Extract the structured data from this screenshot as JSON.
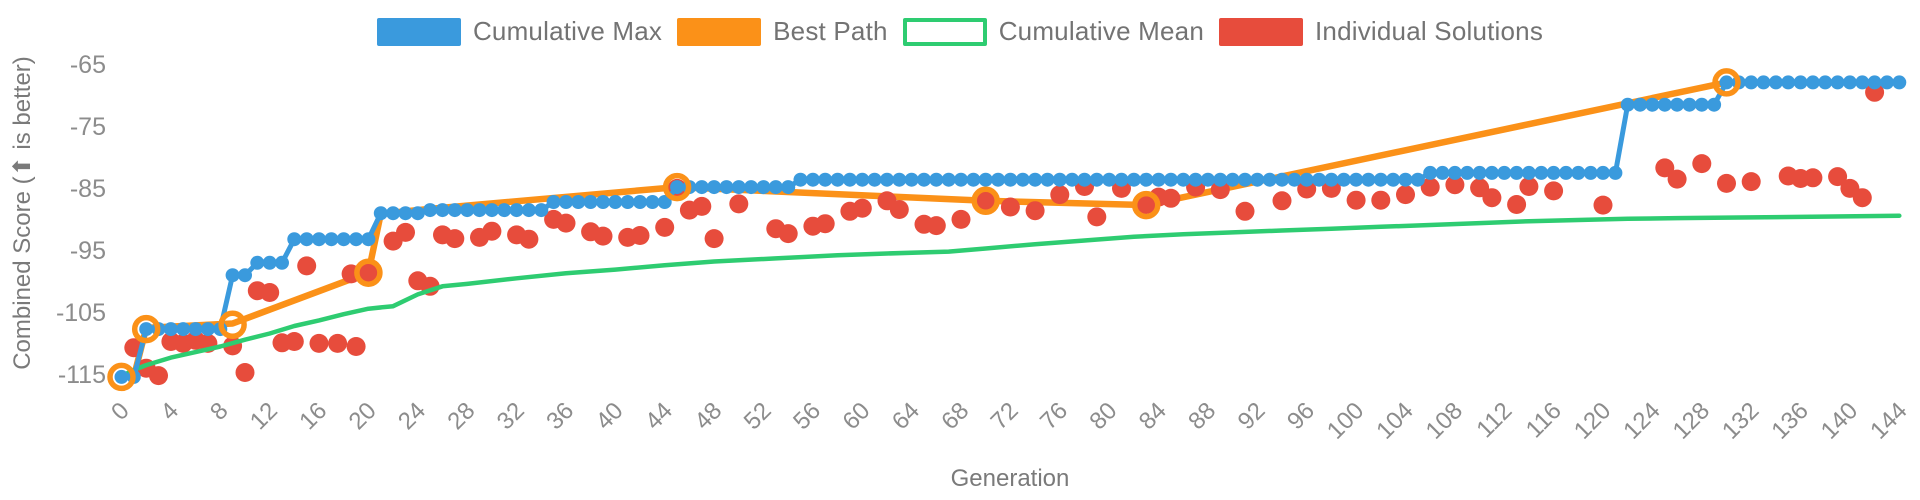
{
  "chart_data": {
    "type": "line",
    "title": "",
    "xlabel": "Generation",
    "ylabel": "Combined Score (⬆ is better)",
    "xlim": [
      -1,
      146
    ],
    "ylim": [
      -117,
      -63
    ],
    "x_ticks": [
      0,
      4,
      8,
      12,
      16,
      20,
      24,
      28,
      32,
      36,
      40,
      44,
      48,
      52,
      56,
      60,
      64,
      68,
      72,
      76,
      80,
      84,
      88,
      92,
      96,
      100,
      104,
      108,
      112,
      116,
      120,
      124,
      128,
      132,
      136,
      140,
      144
    ],
    "y_ticks": [
      -65,
      -75,
      -85,
      -95,
      -105,
      -115
    ],
    "grid": false,
    "legend_position": "top-center",
    "colors": {
      "cumulative_max": "#3a9add",
      "best_path": "#fb9118",
      "cumulative_mean": "#2ecc71",
      "individual_solutions": "#e74c3c",
      "tick_text": "#8c8c8c",
      "axis_title_text": "#7a7a7a",
      "legend_text": "#737373"
    },
    "legend": [
      {
        "label": "Cumulative Max",
        "color": "#3a9add",
        "filled": true
      },
      {
        "label": "Best Path",
        "color": "#fb9118",
        "filled": true
      },
      {
        "label": "Cumulative Mean",
        "color": "#2ecc71",
        "filled": false
      },
      {
        "label": "Individual Solutions",
        "color": "#e74c3c",
        "filled": true
      }
    ],
    "series": {
      "cumulative_max_steps": [
        {
          "from": 0,
          "to": 1,
          "value": -115.3
        },
        {
          "from": 2,
          "to": 8,
          "value": -107.6
        },
        {
          "from": 9,
          "to": 10,
          "value": -98.9
        },
        {
          "from": 11,
          "to": 13,
          "value": -96.9
        },
        {
          "from": 14,
          "to": 20,
          "value": -93.1
        },
        {
          "from": 21,
          "to": 24,
          "value": -88.9
        },
        {
          "from": 25,
          "to": 34,
          "value": -88.4
        },
        {
          "from": 35,
          "to": 44,
          "value": -87.1
        },
        {
          "from": 45,
          "to": 54,
          "value": -84.7
        },
        {
          "from": 55,
          "to": 105,
          "value": -83.5
        },
        {
          "from": 106,
          "to": 121,
          "value": -82.4
        },
        {
          "from": 122,
          "to": 129,
          "value": -71.4
        },
        {
          "from": 130,
          "to": 144,
          "value": -67.8
        }
      ],
      "best_path_points": [
        [
          0,
          -115.3
        ],
        [
          1,
          -115.3
        ],
        [
          2,
          -107.4
        ],
        [
          9,
          -106.7
        ],
        [
          20,
          -98.5
        ],
        [
          21,
          -89.0
        ],
        [
          25,
          -88.2
        ],
        [
          45,
          -84.7
        ],
        [
          70,
          -86.9
        ],
        [
          83,
          -87.6
        ],
        [
          130,
          -67.8
        ]
      ],
      "best_path_ring_markers": [
        [
          0,
          -115.3
        ],
        [
          2,
          -107.6
        ],
        [
          9,
          -106.9
        ],
        [
          20,
          -98.5
        ],
        [
          45,
          -84.7
        ],
        [
          70,
          -86.9
        ],
        [
          83,
          -87.6
        ],
        [
          130,
          -67.8
        ]
      ],
      "cumulative_mean_points": [
        [
          0,
          -115.2
        ],
        [
          1,
          -114.2
        ],
        [
          2,
          -113.4
        ],
        [
          4,
          -112.2
        ],
        [
          6,
          -111.3
        ],
        [
          8,
          -110.4
        ],
        [
          10,
          -109.3
        ],
        [
          12,
          -108.3
        ],
        [
          14,
          -107.1
        ],
        [
          16,
          -106.2
        ],
        [
          18,
          -105.2
        ],
        [
          20,
          -104.3
        ],
        [
          22,
          -103.9
        ],
        [
          24,
          -102.0
        ],
        [
          26,
          -100.7
        ],
        [
          28,
          -100.3
        ],
        [
          32,
          -99.4
        ],
        [
          36,
          -98.6
        ],
        [
          40,
          -98.0
        ],
        [
          44,
          -97.3
        ],
        [
          48,
          -96.7
        ],
        [
          53,
          -96.2
        ],
        [
          58,
          -95.7
        ],
        [
          62,
          -95.4
        ],
        [
          67,
          -95.1
        ],
        [
          70,
          -94.6
        ],
        [
          74,
          -93.9
        ],
        [
          78,
          -93.3
        ],
        [
          82,
          -92.7
        ],
        [
          86,
          -92.3
        ],
        [
          90,
          -92.0
        ],
        [
          94,
          -91.7
        ],
        [
          98,
          -91.4
        ],
        [
          102,
          -91.1
        ],
        [
          106,
          -90.8
        ],
        [
          110,
          -90.5
        ],
        [
          114,
          -90.2
        ],
        [
          118,
          -90.0
        ],
        [
          122,
          -89.8
        ],
        [
          126,
          -89.7
        ],
        [
          131,
          -89.6
        ],
        [
          136,
          -89.5
        ],
        [
          144,
          -89.3
        ]
      ],
      "individual_solutions_points": [
        [
          1,
          -110.6
        ],
        [
          2,
          -113.9
        ],
        [
          3,
          -115.1
        ],
        [
          4,
          -109.6
        ],
        [
          5,
          -109.9
        ],
        [
          6,
          -109.4
        ],
        [
          7,
          -109.9
        ],
        [
          9,
          -110.3
        ],
        [
          10,
          -114.6
        ],
        [
          11,
          -101.4
        ],
        [
          12,
          -101.7
        ],
        [
          13,
          -109.8
        ],
        [
          14,
          -109.6
        ],
        [
          15,
          -97.4
        ],
        [
          16,
          -109.9
        ],
        [
          17.5,
          -109.9
        ],
        [
          18.6,
          -98.7
        ],
        [
          19,
          -110.4
        ],
        [
          20,
          -98.5
        ],
        [
          22,
          -93.4
        ],
        [
          23,
          -92.0
        ],
        [
          24,
          -99.8
        ],
        [
          25,
          -100.7
        ],
        [
          26,
          -92.4
        ],
        [
          27,
          -93.0
        ],
        [
          29,
          -92.8
        ],
        [
          30,
          -91.8
        ],
        [
          32,
          -92.4
        ],
        [
          33,
          -93.1
        ],
        [
          35,
          -89.9
        ],
        [
          36,
          -90.5
        ],
        [
          38,
          -91.9
        ],
        [
          39,
          -92.6
        ],
        [
          41,
          -92.8
        ],
        [
          42,
          -92.5
        ],
        [
          44,
          -91.2
        ],
        [
          45,
          -84.9
        ],
        [
          46,
          -88.4
        ],
        [
          47,
          -87.8
        ],
        [
          48,
          -93.0
        ],
        [
          50,
          -87.4
        ],
        [
          53,
          -91.4
        ],
        [
          54,
          -92.2
        ],
        [
          56,
          -91.0
        ],
        [
          57,
          -90.6
        ],
        [
          59,
          -88.6
        ],
        [
          60,
          -88.1
        ],
        [
          62,
          -86.9
        ],
        [
          63,
          -88.3
        ],
        [
          65,
          -90.7
        ],
        [
          66,
          -90.9
        ],
        [
          68,
          -89.9
        ],
        [
          70,
          -86.9
        ],
        [
          72,
          -87.9
        ],
        [
          74,
          -88.5
        ],
        [
          76,
          -85.9
        ],
        [
          78,
          -84.6
        ],
        [
          79,
          -89.5
        ],
        [
          81,
          -84.9
        ],
        [
          83,
          -87.5
        ],
        [
          84,
          -86.3
        ],
        [
          85,
          -86.5
        ],
        [
          87,
          -84.7
        ],
        [
          89,
          -85.1
        ],
        [
          91,
          -88.6
        ],
        [
          94,
          -86.9
        ],
        [
          96,
          -85.0
        ],
        [
          98,
          -84.9
        ],
        [
          100,
          -86.8
        ],
        [
          102,
          -86.8
        ],
        [
          104,
          -85.9
        ],
        [
          106,
          -84.7
        ],
        [
          108,
          -84.3
        ],
        [
          110,
          -84.8
        ],
        [
          111,
          -86.4
        ],
        [
          113,
          -87.5
        ],
        [
          114,
          -84.6
        ],
        [
          116,
          -85.3
        ],
        [
          120,
          -87.6
        ],
        [
          125,
          -81.6
        ],
        [
          126,
          -83.4
        ],
        [
          128,
          -80.9
        ],
        [
          130,
          -84.1
        ],
        [
          132,
          -83.8
        ],
        [
          135,
          -82.9
        ],
        [
          136,
          -83.3
        ],
        [
          137,
          -83.2
        ],
        [
          139,
          -83.0
        ],
        [
          140,
          -84.9
        ],
        [
          141,
          -86.4
        ],
        [
          142,
          -69.4
        ]
      ]
    }
  }
}
